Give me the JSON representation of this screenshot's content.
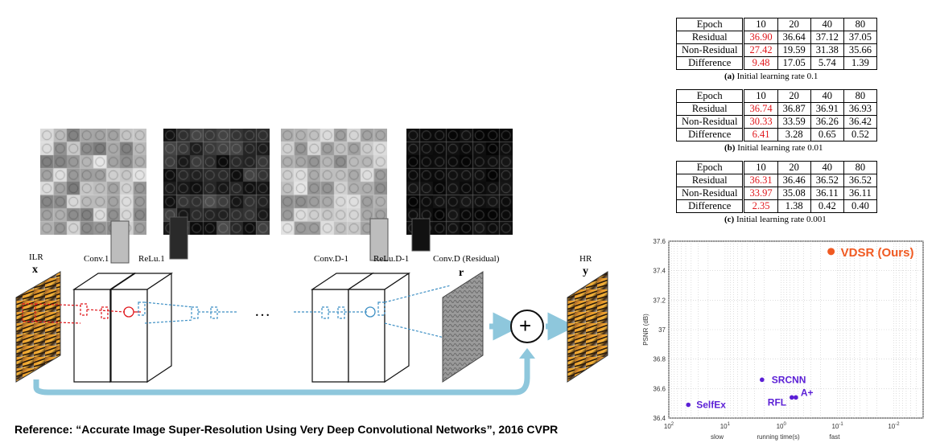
{
  "tables": [
    {
      "header": [
        "Epoch",
        "10",
        "20",
        "40",
        "80"
      ],
      "rows": [
        [
          "Residual",
          "36.90",
          "36.64",
          "37.12",
          "37.05"
        ],
        [
          "Non-Residual",
          "27.42",
          "19.59",
          "31.38",
          "35.66"
        ],
        [
          "Difference",
          "9.48",
          "17.05",
          "5.74",
          "1.39"
        ]
      ],
      "caption_label": "(a)",
      "caption_text": "Initial learning rate 0.1"
    },
    {
      "header": [
        "Epoch",
        "10",
        "20",
        "40",
        "80"
      ],
      "rows": [
        [
          "Residual",
          "36.74",
          "36.87",
          "36.91",
          "36.93"
        ],
        [
          "Non-Residual",
          "30.33",
          "33.59",
          "36.26",
          "36.42"
        ],
        [
          "Difference",
          "6.41",
          "3.28",
          "0.65",
          "0.52"
        ]
      ],
      "caption_label": "(b)",
      "caption_text": "Initial learning rate 0.01"
    },
    {
      "header": [
        "Epoch",
        "10",
        "20",
        "40",
        "80"
      ],
      "rows": [
        [
          "Residual",
          "36.31",
          "36.46",
          "36.52",
          "36.52"
        ],
        [
          "Non-Residual",
          "33.97",
          "35.08",
          "36.11",
          "36.11"
        ],
        [
          "Difference",
          "2.35",
          "1.38",
          "0.42",
          "0.40"
        ]
      ],
      "caption_label": "(c)",
      "caption_text": "Initial learning rate 0.001"
    }
  ],
  "diagram": {
    "ilr_label": "ILR",
    "ilr_var": "x",
    "conv1_label": "Conv.1",
    "relu1_label": "ReLu.1",
    "convd1_label": "Conv.D-1",
    "relud1_label": "ReLu.D-1",
    "convd_label": "Conv.D (Residual)",
    "residual_var": "r",
    "hr_label": "HR",
    "hr_var": "y",
    "ellipsis": "…",
    "plus_symbol": "+",
    "highlight_color": "#e0161b",
    "accent_color": "#8ec7dc"
  },
  "reference": "Reference: “Accurate Image Super-Resolution Using Very Deep Convolutional Networks”, 2016 CVPR",
  "chart_data": {
    "type": "scatter",
    "xlabel": "running time(s)",
    "ylabel": "PSNR (dB)",
    "x_scale": "log",
    "x_reversed": true,
    "xlim": [
      100,
      0.003
    ],
    "ylim": [
      36.4,
      37.6
    ],
    "x_ticks": [
      100,
      10,
      1,
      0.1,
      0.01
    ],
    "x_tick_labels": [
      "10",
      "10",
      "10",
      "10",
      "10"
    ],
    "x_tick_exps": [
      "2",
      "1",
      "0",
      "-1",
      "-2"
    ],
    "y_ticks": [
      36.4,
      36.6,
      36.8,
      37,
      37.2,
      37.4,
      37.6
    ],
    "x_extra_labels": [
      "slow",
      "fast"
    ],
    "grid": true,
    "points": [
      {
        "name": "SelfEx",
        "x": 45,
        "y": 36.49,
        "color": "#5b1fd6"
      },
      {
        "name": "SRCNN",
        "x": 2.2,
        "y": 36.66,
        "color": "#5b1fd6"
      },
      {
        "name": "RFL",
        "x": 0.65,
        "y": 36.54,
        "color": "#5b1fd6"
      },
      {
        "name": "A+",
        "x": 0.55,
        "y": 36.54,
        "color": "#5b1fd6"
      },
      {
        "name": "VDSR (Ours)",
        "x": 0.13,
        "y": 37.53,
        "color": "#f05a22"
      }
    ]
  }
}
